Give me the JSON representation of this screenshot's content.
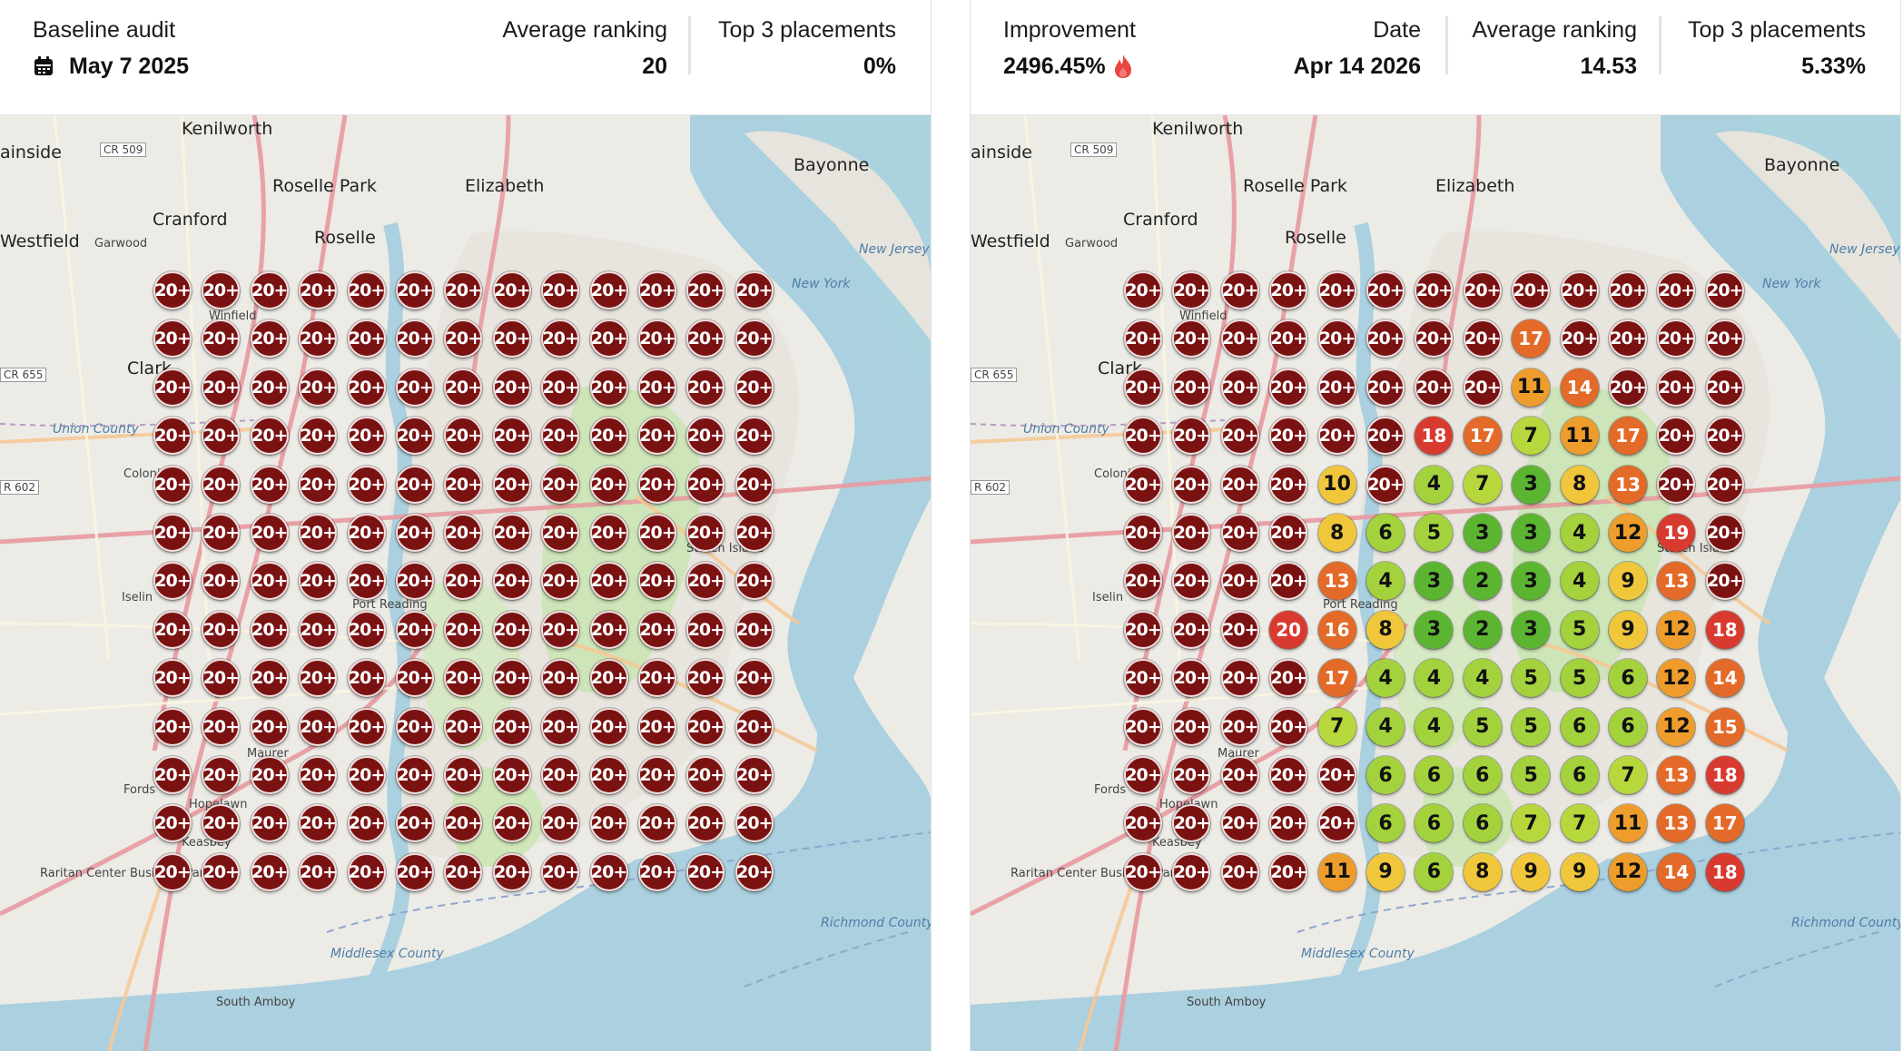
{
  "left": {
    "title": "Baseline audit",
    "date": "May 7 2025",
    "avg_label": "Average ranking",
    "avg_value": "20",
    "top3_label": "Top 3 placements",
    "top3_value": "0%",
    "grid": [
      [
        "20+",
        "20+",
        "20+",
        "20+",
        "20+",
        "20+",
        "20+",
        "20+",
        "20+",
        "20+",
        "20+",
        "20+",
        "20+"
      ],
      [
        "20+",
        "20+",
        "20+",
        "20+",
        "20+",
        "20+",
        "20+",
        "20+",
        "20+",
        "20+",
        "20+",
        "20+",
        "20+"
      ],
      [
        "20+",
        "20+",
        "20+",
        "20+",
        "20+",
        "20+",
        "20+",
        "20+",
        "20+",
        "20+",
        "20+",
        "20+",
        "20+"
      ],
      [
        "20+",
        "20+",
        "20+",
        "20+",
        "20+",
        "20+",
        "20+",
        "20+",
        "20+",
        "20+",
        "20+",
        "20+",
        "20+"
      ],
      [
        "20+",
        "20+",
        "20+",
        "20+",
        "20+",
        "20+",
        "20+",
        "20+",
        "20+",
        "20+",
        "20+",
        "20+",
        "20+"
      ],
      [
        "20+",
        "20+",
        "20+",
        "20+",
        "20+",
        "20+",
        "20+",
        "20+",
        "20+",
        "20+",
        "20+",
        "20+",
        "20+"
      ],
      [
        "20+",
        "20+",
        "20+",
        "20+",
        "20+",
        "20+",
        "20+",
        "20+",
        "20+",
        "20+",
        "20+",
        "20+",
        "20+"
      ],
      [
        "20+",
        "20+",
        "20+",
        "20+",
        "20+",
        "20+",
        "20+",
        "20+",
        "20+",
        "20+",
        "20+",
        "20+",
        "20+"
      ],
      [
        "20+",
        "20+",
        "20+",
        "20+",
        "20+",
        "20+",
        "20+",
        "20+",
        "20+",
        "20+",
        "20+",
        "20+",
        "20+"
      ],
      [
        "20+",
        "20+",
        "20+",
        "20+",
        "20+",
        "20+",
        "20+",
        "20+",
        "20+",
        "20+",
        "20+",
        "20+",
        "20+"
      ],
      [
        "20+",
        "20+",
        "20+",
        "20+",
        "20+",
        "20+",
        "20+",
        "20+",
        "20+",
        "20+",
        "20+",
        "20+",
        "20+"
      ],
      [
        "20+",
        "20+",
        "20+",
        "20+",
        "20+",
        "20+",
        "20+",
        "20+",
        "20+",
        "20+",
        "20+",
        "20+",
        "20+"
      ],
      [
        "20+",
        "20+",
        "20+",
        "20+",
        "20+",
        "20+",
        "20+",
        "20+",
        "20+",
        "20+",
        "20+",
        "20+",
        "20+"
      ]
    ]
  },
  "right": {
    "improvement_label": "Improvement",
    "improvement_value": "2496.45%",
    "date_label": "Date",
    "date_value": "Apr 14 2026",
    "avg_label": "Average ranking",
    "avg_value": "14.53",
    "top3_label": "Top 3 placements",
    "top3_value": "5.33%",
    "grid": [
      [
        "20+",
        "20+",
        "20+",
        "20+",
        "20+",
        "20+",
        "20+",
        "20+",
        "20+",
        "20+",
        "20+",
        "20+",
        "20+"
      ],
      [
        "20+",
        "20+",
        "20+",
        "20+",
        "20+",
        "20+",
        "20+",
        "20+",
        "17",
        "20+",
        "20+",
        "20+",
        "20+"
      ],
      [
        "20+",
        "20+",
        "20+",
        "20+",
        "20+",
        "20+",
        "20+",
        "20+",
        "11",
        "14",
        "20+",
        "20+",
        "20+"
      ],
      [
        "20+",
        "20+",
        "20+",
        "20+",
        "20+",
        "20+",
        "18",
        "17",
        "7",
        "11",
        "17",
        "20+",
        "20+"
      ],
      [
        "20+",
        "20+",
        "20+",
        "20+",
        "10",
        "20+",
        "4",
        "7",
        "3",
        "8",
        "13",
        "20+",
        "20+"
      ],
      [
        "20+",
        "20+",
        "20+",
        "20+",
        "8",
        "6",
        "5",
        "3",
        "3",
        "4",
        "12",
        "19",
        "20+"
      ],
      [
        "20+",
        "20+",
        "20+",
        "20+",
        "13",
        "4",
        "3",
        "2",
        "3",
        "4",
        "9",
        "13",
        "20+"
      ],
      [
        "20+",
        "20+",
        "20+",
        "20",
        "16",
        "8",
        "3",
        "2",
        "3",
        "5",
        "9",
        "12",
        "18"
      ],
      [
        "20+",
        "20+",
        "20+",
        "20+",
        "17",
        "4",
        "4",
        "4",
        "5",
        "5",
        "6",
        "12",
        "14"
      ],
      [
        "20+",
        "20+",
        "20+",
        "20+",
        "7",
        "4",
        "4",
        "5",
        "5",
        "6",
        "6",
        "12",
        "15"
      ],
      [
        "20+",
        "20+",
        "20+",
        "20+",
        "20+",
        "6",
        "6",
        "6",
        "5",
        "6",
        "7",
        "13",
        "18"
      ],
      [
        "20+",
        "20+",
        "20+",
        "20+",
        "20+",
        "6",
        "6",
        "6",
        "7",
        "7",
        "11",
        "13",
        "17"
      ],
      [
        "20+",
        "20+",
        "20+",
        "20+",
        "11",
        "9",
        "6",
        "8",
        "9",
        "9",
        "12",
        "14",
        "18"
      ]
    ]
  },
  "map_labels": {
    "kenilworth": "Kenilworth",
    "roselle_park": "Roselle Park",
    "elizabeth": "Elizabeth",
    "bayonne": "Bayonne",
    "cranford": "Cranford",
    "roselle": "Roselle",
    "westfield": "Westfield",
    "garwood": "Garwood",
    "plainside": "ainside",
    "winfield": "Winfield",
    "clark": "Clark",
    "colonia": "Colonia",
    "iselin": "Iselin",
    "port_reading": "Port Reading",
    "staten_island": "Staten Island",
    "fords": "Fords",
    "hopelawn": "Hopelawn",
    "keasbey": "Keasbey",
    "maurer": "Maurer",
    "south_amboy": "South Amboy",
    "raritan": "Raritan Center Business Park",
    "union_county": "Union County",
    "richmond_county": "Richmond County",
    "middlesex_county": "Middlesex County",
    "new_jersey": "New Jersey",
    "new_york": "New York",
    "cr509": "CR 509",
    "cr655": "CR 655",
    "r602": "R 602"
  },
  "colors": {
    "nr": "#7a1212",
    "r1_3": "#5cb531",
    "r4_6": "#a3d23c",
    "r7": "#b7d83c",
    "r8_10": "#f0c73b",
    "r11_12": "#ee9d2c",
    "r13_17": "#e36a28",
    "r18_20": "#d93a30"
  }
}
